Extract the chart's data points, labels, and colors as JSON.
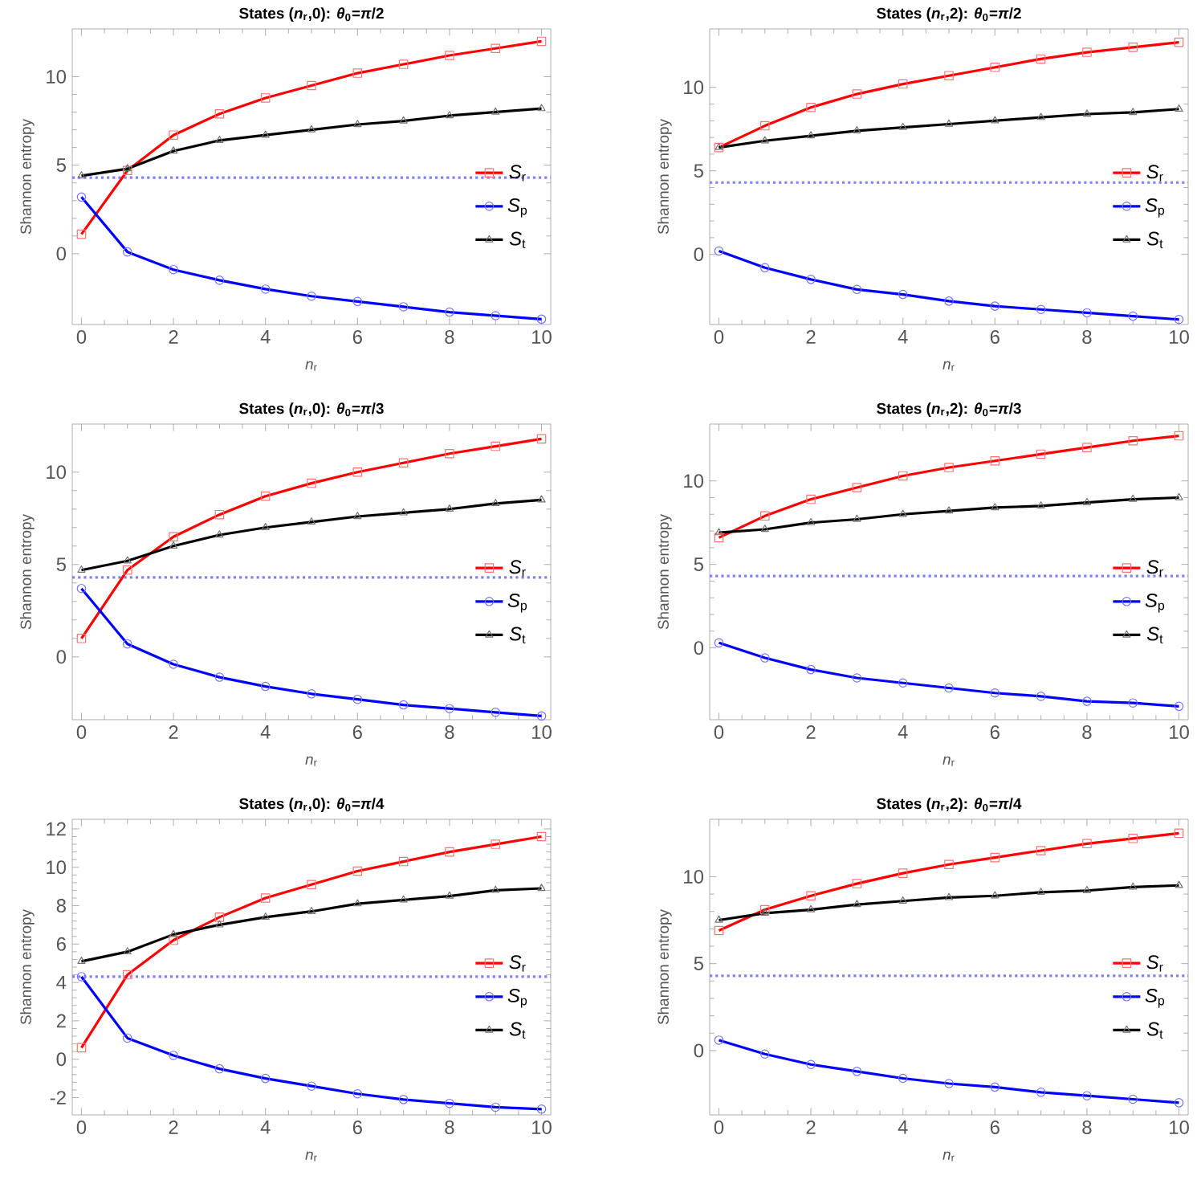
{
  "chart_data": [
    {
      "type": "line",
      "title": "States (*n*$_{r}$,0): *θ*$_{0}$=*π*/2",
      "xlabel": "*n*$_{r}$",
      "ylabel": "Shannon entropy",
      "x": [
        0,
        1,
        2,
        3,
        4,
        5,
        6,
        7,
        8,
        9,
        10
      ],
      "xlim": [
        -0.2,
        10.2
      ],
      "ylim": [
        -4,
        12.7
      ],
      "xticks": [
        0,
        2,
        4,
        6,
        8,
        10
      ],
      "yticks": [
        0,
        5,
        10
      ],
      "legend": "right",
      "ref_lines": [
        {
          "axis": "y",
          "value": 4.3,
          "color": "#8080ff",
          "line_style": "dotted"
        }
      ],
      "series": [
        {
          "name": "*S*$_{r}$",
          "color": "#ff0000",
          "marker": "square",
          "values": [
            1.1,
            4.7,
            6.7,
            7.9,
            8.8,
            9.5,
            10.2,
            10.7,
            11.2,
            11.6,
            12.0
          ]
        },
        {
          "name": "*S*$_{p}$",
          "color": "#0000ff",
          "marker": "circle",
          "values": [
            3.2,
            0.1,
            -0.9,
            -1.5,
            -2.0,
            -2.4,
            -2.7,
            -3.0,
            -3.3,
            -3.5,
            -3.7
          ]
        },
        {
          "name": "*S*$_{t}$",
          "color": "#000000",
          "marker": "triangle",
          "values": [
            4.4,
            4.8,
            5.8,
            6.4,
            6.7,
            7.0,
            7.3,
            7.5,
            7.8,
            8.0,
            8.2
          ]
        }
      ]
    },
    {
      "type": "line",
      "title": "States (*n*$_{r}$,2): *θ*$_{0}$=*π*/2",
      "xlabel": "*n*$_{r}$",
      "ylabel": "Shannon entropy",
      "x": [
        0,
        1,
        2,
        3,
        4,
        5,
        6,
        7,
        8,
        9,
        10
      ],
      "xlim": [
        -0.2,
        10.2
      ],
      "ylim": [
        -4.2,
        13.5
      ],
      "xticks": [
        0,
        2,
        4,
        6,
        8,
        10
      ],
      "yticks": [
        0,
        5,
        10
      ],
      "legend": "right",
      "ref_lines": [
        {
          "axis": "y",
          "value": 4.3,
          "color": "#8080ff",
          "line_style": "dotted"
        }
      ],
      "series": [
        {
          "name": "*S*$_{r}$",
          "color": "#ff0000",
          "marker": "square",
          "values": [
            6.4,
            7.7,
            8.8,
            9.6,
            10.2,
            10.7,
            11.2,
            11.7,
            12.1,
            12.4,
            12.7
          ]
        },
        {
          "name": "*S*$_{p}$",
          "color": "#0000ff",
          "marker": "circle",
          "values": [
            0.2,
            -0.8,
            -1.5,
            -2.1,
            -2.4,
            -2.8,
            -3.1,
            -3.3,
            -3.5,
            -3.7,
            -3.9
          ]
        },
        {
          "name": "*S*$_{t}$",
          "color": "#000000",
          "marker": "triangle",
          "values": [
            6.4,
            6.8,
            7.1,
            7.4,
            7.6,
            7.8,
            8.0,
            8.2,
            8.4,
            8.5,
            8.7
          ]
        }
      ]
    },
    {
      "type": "line",
      "title": "States (*n*$_{r}$,0): *θ*$_{0}$=*π*/3",
      "xlabel": "*n*$_{r}$",
      "ylabel": "Shannon entropy",
      "x": [
        0,
        1,
        2,
        3,
        4,
        5,
        6,
        7,
        8,
        9,
        10
      ],
      "xlim": [
        -0.2,
        10.2
      ],
      "ylim": [
        -3.4,
        12.6
      ],
      "xticks": [
        0,
        2,
        4,
        6,
        8,
        10
      ],
      "yticks": [
        0,
        5,
        10
      ],
      "legend": "right",
      "ref_lines": [
        {
          "axis": "y",
          "value": 4.3,
          "color": "#8080ff",
          "line_style": "dotted"
        }
      ],
      "series": [
        {
          "name": "*S*$_{r}$",
          "color": "#ff0000",
          "marker": "square",
          "values": [
            1.0,
            4.7,
            6.5,
            7.7,
            8.7,
            9.4,
            10.0,
            10.5,
            11.0,
            11.4,
            11.8
          ]
        },
        {
          "name": "*S*$_{p}$",
          "color": "#0000ff",
          "marker": "circle",
          "values": [
            3.7,
            0.7,
            -0.4,
            -1.1,
            -1.6,
            -2.0,
            -2.3,
            -2.6,
            -2.8,
            -3.0,
            -3.2
          ]
        },
        {
          "name": "*S*$_{t}$",
          "color": "#000000",
          "marker": "triangle",
          "values": [
            4.7,
            5.2,
            6.0,
            6.6,
            7.0,
            7.3,
            7.6,
            7.8,
            8.0,
            8.3,
            8.5
          ]
        }
      ]
    },
    {
      "type": "line",
      "title": "States (*n*$_{r}$,2): *θ*$_{0}$=*π*/3",
      "xlabel": "*n*$_{r}$",
      "ylabel": "Shannon entropy",
      "x": [
        0,
        1,
        2,
        3,
        4,
        5,
        6,
        7,
        8,
        9,
        10
      ],
      "xlim": [
        -0.2,
        10.2
      ],
      "ylim": [
        -4.3,
        13.4
      ],
      "xticks": [
        0,
        2,
        4,
        6,
        8,
        10
      ],
      "yticks": [
        0,
        5,
        10
      ],
      "legend": "right",
      "ref_lines": [
        {
          "axis": "y",
          "value": 4.3,
          "color": "#8080ff",
          "line_style": "dotted"
        }
      ],
      "series": [
        {
          "name": "*S*$_{r}$",
          "color": "#ff0000",
          "marker": "square",
          "values": [
            6.6,
            7.9,
            8.9,
            9.6,
            10.3,
            10.8,
            11.2,
            11.6,
            12.0,
            12.4,
            12.7
          ]
        },
        {
          "name": "*S*$_{p}$",
          "color": "#0000ff",
          "marker": "circle",
          "values": [
            0.3,
            -0.6,
            -1.3,
            -1.8,
            -2.1,
            -2.4,
            -2.7,
            -2.9,
            -3.2,
            -3.3,
            -3.5
          ]
        },
        {
          "name": "*S*$_{t}$",
          "color": "#000000",
          "marker": "triangle",
          "values": [
            6.9,
            7.1,
            7.5,
            7.7,
            8.0,
            8.2,
            8.4,
            8.5,
            8.7,
            8.9,
            9.0
          ]
        }
      ]
    },
    {
      "type": "line",
      "title": "States (*n*$_{r}$,0): *θ*$_{0}$=*π*/4",
      "xlabel": "*n*$_{r}$",
      "ylabel": "Shannon entropy",
      "x": [
        0,
        1,
        2,
        3,
        4,
        5,
        6,
        7,
        8,
        9,
        10
      ],
      "xlim": [
        -0.2,
        10.2
      ],
      "ylim": [
        -2.9,
        12.5
      ],
      "xticks": [
        0,
        2,
        4,
        6,
        8,
        10
      ],
      "yticks": [
        -2,
        0,
        2,
        4,
        6,
        8,
        10,
        12
      ],
      "legend": "right",
      "ref_lines": [
        {
          "axis": "y",
          "value": 4.3,
          "color": "#8080ff",
          "line_style": "dotted"
        }
      ],
      "series": [
        {
          "name": "*S*$_{r}$",
          "color": "#ff0000",
          "marker": "square",
          "values": [
            0.6,
            4.4,
            6.2,
            7.4,
            8.4,
            9.1,
            9.8,
            10.3,
            10.8,
            11.2,
            11.6
          ]
        },
        {
          "name": "*S*$_{p}$",
          "color": "#0000ff",
          "marker": "circle",
          "values": [
            4.3,
            1.1,
            0.2,
            -0.5,
            -1.0,
            -1.4,
            -1.8,
            -2.1,
            -2.3,
            -2.5,
            -2.6
          ]
        },
        {
          "name": "*S*$_{t}$",
          "color": "#000000",
          "marker": "triangle",
          "values": [
            5.1,
            5.6,
            6.5,
            7.0,
            7.4,
            7.7,
            8.1,
            8.3,
            8.5,
            8.8,
            8.9
          ]
        }
      ]
    },
    {
      "type": "line",
      "title": "States (*n*$_{r}$,2): *θ*$_{0}$=*π*/4",
      "xlabel": "*n*$_{r}$",
      "ylabel": "Shannon entropy",
      "x": [
        0,
        1,
        2,
        3,
        4,
        5,
        6,
        7,
        8,
        9,
        10
      ],
      "xlim": [
        -0.2,
        10.2
      ],
      "ylim": [
        -3.7,
        13.3
      ],
      "xticks": [
        0,
        2,
        4,
        6,
        8,
        10
      ],
      "yticks": [
        0,
        5,
        10
      ],
      "legend": "right",
      "ref_lines": [
        {
          "axis": "y",
          "value": 4.3,
          "color": "#8080ff",
          "line_style": "dotted"
        }
      ],
      "series": [
        {
          "name": "*S*$_{r}$",
          "color": "#ff0000",
          "marker": "square",
          "values": [
            6.9,
            8.1,
            8.9,
            9.6,
            10.2,
            10.7,
            11.1,
            11.5,
            11.9,
            12.2,
            12.5
          ]
        },
        {
          "name": "*S*$_{p}$",
          "color": "#0000ff",
          "marker": "circle",
          "values": [
            0.6,
            -0.2,
            -0.8,
            -1.2,
            -1.6,
            -1.9,
            -2.1,
            -2.4,
            -2.6,
            -2.8,
            -3.0
          ]
        },
        {
          "name": "*S*$_{t}$",
          "color": "#000000",
          "marker": "triangle",
          "values": [
            7.5,
            7.9,
            8.1,
            8.4,
            8.6,
            8.8,
            8.9,
            9.1,
            9.2,
            9.4,
            9.5
          ]
        }
      ]
    }
  ]
}
